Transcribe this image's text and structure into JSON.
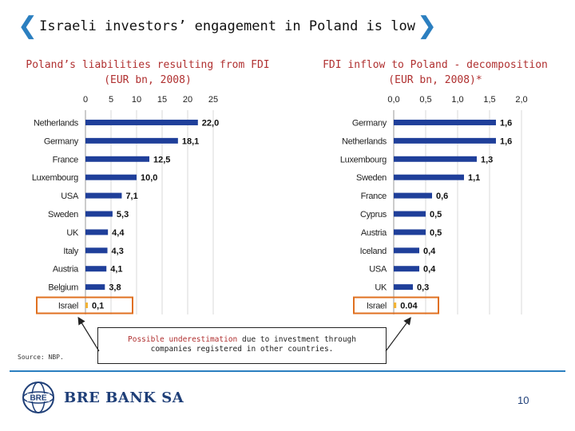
{
  "slide": {
    "title": "Israeli investors’ engagement in Poland is low",
    "source": "Source: NBP.",
    "note_highlight": "Possible underestimation",
    "note_line1_rest": " due to investment through",
    "note_line2": "companies registered in other countries.",
    "company": "BRE BANK SA",
    "page_number": "10",
    "logo_icon": "globe-logo-icon"
  },
  "colors": {
    "bar": "#1f3f9a",
    "highlight_bar": "#f2b233",
    "highlight_box": "#e07020",
    "accent": "#2b7fc0",
    "title_red": "#b03030"
  },
  "chart_data": [
    {
      "type": "bar",
      "orientation": "horizontal",
      "title_line1": "Poland’s liabilities resulting from FDI",
      "title_line2": "(EUR bn, 2008)",
      "categories": [
        "Netherlands",
        "Germany",
        "France",
        "Luxembourg",
        "USA",
        "Sweden",
        "UK",
        "Italy",
        "Austria",
        "Belgium",
        "Israel"
      ],
      "values": [
        22.0,
        18.1,
        12.5,
        10.0,
        7.1,
        5.3,
        4.4,
        4.3,
        4.1,
        3.8,
        0.1
      ],
      "value_labels": [
        "22,0",
        "18,1",
        "12,5",
        "10,0",
        "7,1",
        "5,3",
        "4,4",
        "4,3",
        "4,1",
        "3,8",
        "0,1"
      ],
      "xlim": [
        0,
        25
      ],
      "ticks": [
        0,
        5,
        10,
        15,
        20,
        25
      ],
      "tick_labels": [
        "0",
        "5",
        "10",
        "15",
        "20",
        "25"
      ],
      "axis_position": "top",
      "grid": true,
      "highlight": "Israel"
    },
    {
      "type": "bar",
      "orientation": "horizontal",
      "title_line1": "FDI inflow to Poland - decomposition",
      "title_line2": "(EUR bn, 2008)*",
      "categories": [
        "Germany",
        "Netherlands",
        "Luxembourg",
        "Sweden",
        "France",
        "Cyprus",
        "Austria",
        "Iceland",
        "USA",
        "UK",
        "Israel"
      ],
      "values": [
        1.6,
        1.6,
        1.3,
        1.1,
        0.6,
        0.5,
        0.5,
        0.4,
        0.4,
        0.3,
        0.04
      ],
      "value_labels": [
        "1,6",
        "1,6",
        "1,3",
        "1,1",
        "0,6",
        "0,5",
        "0,5",
        "0,4",
        "0,4",
        "0,3",
        "0.04"
      ],
      "xlim": [
        0,
        2.0
      ],
      "ticks": [
        0,
        0.5,
        1.0,
        1.5,
        2.0
      ],
      "tick_labels": [
        "0,0",
        "0,5",
        "1,0",
        "1,5",
        "2,0"
      ],
      "axis_position": "top",
      "grid": true,
      "highlight": "Israel"
    }
  ]
}
